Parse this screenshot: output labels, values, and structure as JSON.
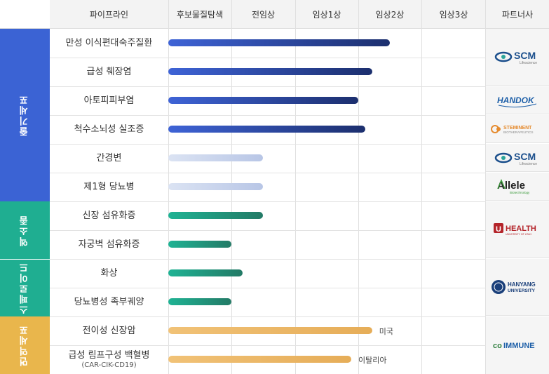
{
  "headers": {
    "pipeline": "파이프라인",
    "discovery": "후보물질탐색",
    "preclinical": "전임상",
    "phase1": "임상1상",
    "phase2": "임상2상",
    "phase3": "임상3상",
    "partner": "파트너사"
  },
  "categories": [
    {
      "label": "줄기세포",
      "color": "#3b63d4"
    },
    {
      "label": "엑소좀",
      "color": "#1fae91"
    },
    {
      "label": "스페로이드",
      "color": "#1fae91"
    },
    {
      "label": "면역세포",
      "color": "#e9b64c"
    }
  ],
  "rows": [
    {
      "name": "만성 이식편대숙주질환",
      "progress": 3.5,
      "style": "blue"
    },
    {
      "name": "급성 췌장염",
      "progress": 3.22,
      "style": "blue"
    },
    {
      "name": "아토피피부염",
      "progress": 3.0,
      "style": "blue"
    },
    {
      "name": "척수소뇌성 실조증",
      "progress": 3.11,
      "style": "blue"
    },
    {
      "name": "간경변",
      "progress": 1.5,
      "style": "pale"
    },
    {
      "name": "제1형 당뇨병",
      "progress": 1.5,
      "style": "pale"
    },
    {
      "name": "신장 섬유화증",
      "progress": 1.5,
      "style": "teal"
    },
    {
      "name": "자궁벽 섬유화증",
      "progress": 1.0,
      "style": "teal"
    },
    {
      "name": "화상",
      "progress": 1.17,
      "style": "teal"
    },
    {
      "name": "당뇨병성 족부궤양",
      "progress": 1.0,
      "style": "teal"
    },
    {
      "name": "전이성 신장암",
      "progress": 3.22,
      "style": "gold",
      "note": "미국"
    },
    {
      "name": "급성 림프구성 백혈병",
      "sub": "(CAR-CIK-CD19)",
      "progress": 2.89,
      "style": "gold",
      "note": "이탈리아"
    }
  ],
  "partners": [
    {
      "name": "SCM",
      "tagline": "Lifescience"
    },
    {
      "name": "HANDOK"
    },
    {
      "name": "STEMINENT",
      "tagline": "BIOTHERAPEUTICS"
    },
    {
      "name": "SCM",
      "tagline": "Lifescience"
    },
    {
      "name": "Allele",
      "tagline": "Biotechnology"
    },
    {
      "name": "HEALTH",
      "tagline": "UNIVERSITY OF UTAH"
    },
    {
      "name": "HANYANG",
      "tagline": "UNIVERSITY"
    },
    {
      "name": "IMMUNE",
      "prefix": "co"
    }
  ]
}
